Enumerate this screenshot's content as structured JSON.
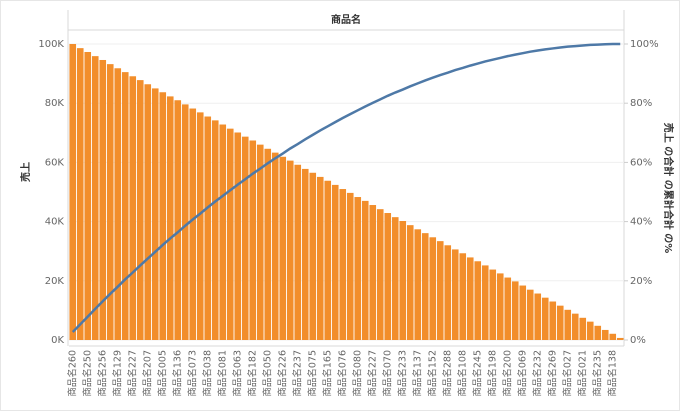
{
  "chart_data": {
    "type": "pareto",
    "x_label": "商品名",
    "y_label": "売上",
    "y2_label": "売上 の合計 の累計合計 の%",
    "categories": [
      "商品名260",
      null,
      "商品名250",
      null,
      "商品名256",
      null,
      "商品名129",
      null,
      "商品名227",
      null,
      "商品名207",
      null,
      "商品名005",
      null,
      "商品名136",
      null,
      "商品名073",
      null,
      "商品名038",
      null,
      "商品名081",
      null,
      "商品名063",
      null,
      "商品名182",
      null,
      "商品名050",
      null,
      "商品名226",
      null,
      "商品名237",
      null,
      "商品名075",
      null,
      "商品名165",
      null,
      "商品名076",
      null,
      "商品名080",
      null,
      "商品名227",
      null,
      "商品名070",
      null,
      "商品名233",
      null,
      "商品名137",
      null,
      "商品名152",
      null,
      "商品名288",
      null,
      "商品名108",
      null,
      "商品名245",
      null,
      "商品名198",
      null,
      "商品名200",
      null,
      "商品名069",
      null,
      "商品名232",
      null,
      "商品名269",
      null,
      "商品名027",
      null,
      "商品名021",
      null,
      "商品名235",
      null,
      "商品名138",
      null
    ],
    "series": [
      {
        "type": "bar",
        "color": "#f28e2b",
        "values": [
          100000,
          98600,
          97300,
          95900,
          94600,
          93200,
          91800,
          90500,
          89100,
          87800,
          86400,
          85000,
          83700,
          82300,
          81000,
          79600,
          78200,
          76900,
          75500,
          74200,
          72800,
          71400,
          70100,
          68700,
          67400,
          66000,
          64600,
          63300,
          61900,
          60600,
          59200,
          57800,
          56500,
          55100,
          53800,
          52400,
          51000,
          49700,
          48300,
          47000,
          45600,
          44200,
          42900,
          41500,
          40200,
          38800,
          37400,
          36100,
          34700,
          33400,
          32000,
          30600,
          29300,
          27900,
          26600,
          25200,
          23800,
          22500,
          21100,
          19800,
          18400,
          17000,
          15700,
          14300,
          13000,
          11600,
          10200,
          8900,
          7500,
          6200,
          4800,
          3400,
          2100,
          700
        ]
      },
      {
        "type": "line",
        "axis": "y2",
        "color": "#4e79a7",
        "values": [
          2.7,
          5.3,
          7.9,
          10.5,
          13.1,
          15.6,
          18.0,
          20.5,
          22.8,
          25.2,
          27.5,
          29.8,
          32.1,
          34.3,
          36.4,
          38.6,
          40.7,
          42.7,
          44.8,
          46.8,
          48.7,
          50.6,
          52.5,
          54.3,
          56.2,
          57.9,
          59.7,
          61.4,
          63.0,
          64.7,
          66.2,
          67.8,
          69.3,
          70.8,
          72.2,
          73.6,
          75.0,
          76.3,
          77.6,
          78.9,
          80.1,
          81.3,
          82.5,
          83.6,
          84.6,
          85.7,
          86.7,
          87.7,
          88.6,
          89.5,
          90.3,
          91.2,
          91.9,
          92.7,
          93.4,
          94.1,
          94.7,
          95.3,
          95.9,
          96.4,
          96.9,
          97.4,
          97.8,
          98.2,
          98.5,
          98.8,
          99.1,
          99.3,
          99.5,
          99.7,
          99.8,
          99.9,
          100.0,
          100.0
        ]
      }
    ],
    "ylim": [
      0,
      100000
    ],
    "yticks": [
      {
        "value": 0,
        "label": "0K"
      },
      {
        "value": 20000,
        "label": "20K"
      },
      {
        "value": 40000,
        "label": "40K"
      },
      {
        "value": 60000,
        "label": "60K"
      },
      {
        "value": 80000,
        "label": "80K"
      },
      {
        "value": 100000,
        "label": "100K"
      }
    ],
    "y2lim": [
      0,
      100
    ],
    "y2ticks": [
      {
        "value": 0,
        "label": "0%"
      },
      {
        "value": 20,
        "label": "20%"
      },
      {
        "value": 40,
        "label": "40%"
      },
      {
        "value": 60,
        "label": "60%"
      },
      {
        "value": 80,
        "label": "80%"
      },
      {
        "value": 100,
        "label": "100%"
      }
    ],
    "grid": true
  }
}
